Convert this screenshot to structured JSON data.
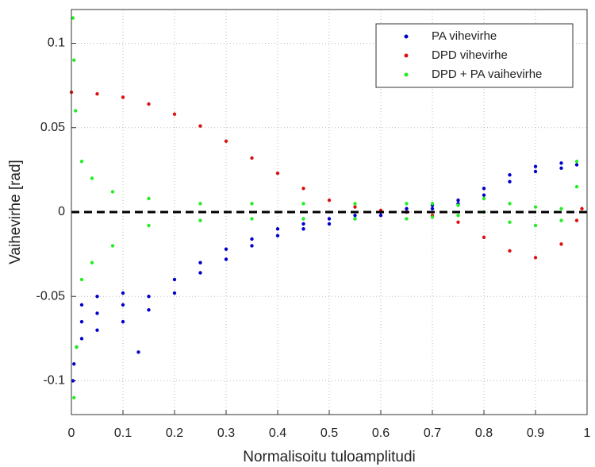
{
  "chart_data": {
    "type": "scatter",
    "xlabel": "Normalisoitu tuloamplitudi",
    "ylabel": "Vaihevirhe [rad]",
    "xlim": [
      0,
      1
    ],
    "ylim": [
      -0.12,
      0.12
    ],
    "xticks": [
      0,
      0.1,
      0.2,
      0.3,
      0.4,
      0.5,
      0.6,
      0.7,
      0.8,
      0.9,
      1
    ],
    "yticks": [
      -0.1,
      -0.05,
      0,
      0.05,
      0.1
    ],
    "grid": true,
    "legend": "top-right",
    "reference_line": {
      "y": 0,
      "color": "#000000",
      "dashed": true
    },
    "series": [
      {
        "name": "PA vihevirhe",
        "color": "#0000cc",
        "x": [
          0.003,
          0.005,
          0.01,
          0.02,
          0.02,
          0.02,
          0.05,
          0.05,
          0.05,
          0.1,
          0.1,
          0.1,
          0.13,
          0.15,
          0.15,
          0.2,
          0.2,
          0.25,
          0.25,
          0.3,
          0.3,
          0.35,
          0.35,
          0.4,
          0.4,
          0.45,
          0.45,
          0.5,
          0.5,
          0.55,
          0.55,
          0.6,
          0.6,
          0.65,
          0.65,
          0.7,
          0.7,
          0.75,
          0.75,
          0.8,
          0.8,
          0.85,
          0.85,
          0.9,
          0.9,
          0.95,
          0.95,
          0.98
        ],
        "values": [
          -0.1,
          -0.09,
          -0.08,
          -0.065,
          -0.075,
          -0.055,
          -0.06,
          -0.07,
          -0.05,
          -0.055,
          -0.065,
          -0.048,
          -0.083,
          -0.05,
          -0.058,
          -0.04,
          -0.048,
          -0.03,
          -0.036,
          -0.022,
          -0.028,
          -0.016,
          -0.02,
          -0.01,
          -0.014,
          -0.007,
          -0.01,
          -0.004,
          -0.007,
          -0.002,
          -0.004,
          0,
          -0.002,
          0.002,
          0,
          0.004,
          0.002,
          0.007,
          0.005,
          0.014,
          0.01,
          0.022,
          0.018,
          0.027,
          0.024,
          0.029,
          0.026,
          0.028
        ]
      },
      {
        "name": "DPD vihevirhe",
        "color": "#dd1111",
        "x": [
          0,
          0.05,
          0.1,
          0.15,
          0.2,
          0.25,
          0.3,
          0.35,
          0.4,
          0.45,
          0.5,
          0.55,
          0.6,
          0.65,
          0.7,
          0.75,
          0.8,
          0.85,
          0.9,
          0.95,
          0.98,
          0.99
        ],
        "values": [
          0.071,
          0.07,
          0.068,
          0.064,
          0.058,
          0.051,
          0.042,
          0.032,
          0.023,
          0.014,
          0.007,
          0.003,
          0.001,
          0,
          -0.002,
          -0.006,
          -0.015,
          -0.023,
          -0.027,
          -0.019,
          -0.005,
          0.002
        ]
      },
      {
        "name": "DPD + PA vaihevirhe",
        "color": "#22ee22",
        "x": [
          0.003,
          0.005,
          0.008,
          0.005,
          0.01,
          0.02,
          0.02,
          0.04,
          0.04,
          0.08,
          0.08,
          0.15,
          0.15,
          0.25,
          0.25,
          0.35,
          0.35,
          0.45,
          0.45,
          0.55,
          0.55,
          0.65,
          0.65,
          0.7,
          0.7,
          0.75,
          0.75,
          0.8,
          0.8,
          0.85,
          0.85,
          0.9,
          0.9,
          0.95,
          0.95,
          0.98,
          0.98
        ],
        "values": [
          0.115,
          0.09,
          0.06,
          -0.11,
          -0.08,
          0.03,
          -0.04,
          0.02,
          -0.03,
          0.012,
          -0.02,
          0.008,
          -0.008,
          0.005,
          -0.005,
          0.005,
          -0.004,
          0.005,
          -0.004,
          0.005,
          -0.004,
          0.005,
          -0.004,
          0.005,
          -0.003,
          0.004,
          -0.002,
          0,
          0.008,
          -0.006,
          0.005,
          -0.008,
          0.003,
          -0.005,
          0.002,
          0.015,
          0.03
        ]
      }
    ]
  }
}
